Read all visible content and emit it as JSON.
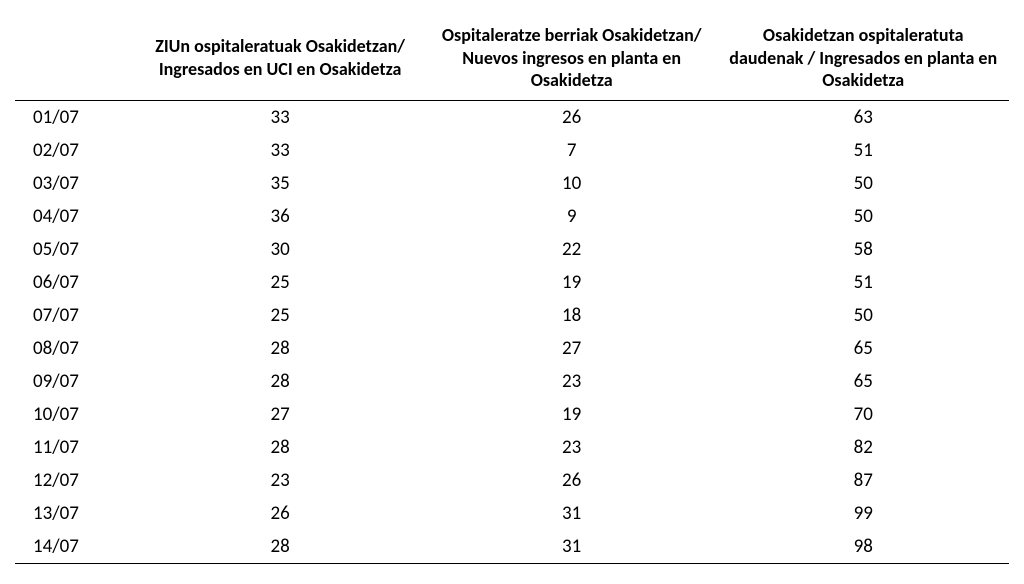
{
  "table": {
    "type": "table",
    "background_color": "#ffffff",
    "text_color": "#000000",
    "border_color": "#000000",
    "header_font_weight": "bold",
    "header_fontsize": 18,
    "cell_fontsize": 19,
    "columns": [
      {
        "key": "date",
        "label": "",
        "align": "left",
        "width_pct": 12
      },
      {
        "key": "uci",
        "label": "ZIUn ospitaleratuak Osakidetzan/ Ingresados en UCI en Osakidetza",
        "align": "center",
        "width_pct": 29.3
      },
      {
        "key": "new",
        "label": "Ospitaleratze berriak Osakidetzan/ Nuevos ingresos en planta en Osakidetza",
        "align": "center",
        "width_pct": 29.3
      },
      {
        "key": "total",
        "label": "Osakidetzan ospitaleratuta daudenak / Ingresados en planta en Osakidetza",
        "align": "center",
        "width_pct": 29.3
      }
    ],
    "rows": [
      {
        "date": "01/07",
        "uci": 33,
        "new": 26,
        "total": 63
      },
      {
        "date": "02/07",
        "uci": 33,
        "new": 7,
        "total": 51
      },
      {
        "date": "03/07",
        "uci": 35,
        "new": 10,
        "total": 50
      },
      {
        "date": "04/07",
        "uci": 36,
        "new": 9,
        "total": 50
      },
      {
        "date": "05/07",
        "uci": 30,
        "new": 22,
        "total": 58
      },
      {
        "date": "06/07",
        "uci": 25,
        "new": 19,
        "total": 51
      },
      {
        "date": "07/07",
        "uci": 25,
        "new": 18,
        "total": 50
      },
      {
        "date": "08/07",
        "uci": 28,
        "new": 27,
        "total": 65
      },
      {
        "date": "09/07",
        "uci": 28,
        "new": 23,
        "total": 65
      },
      {
        "date": "10/07",
        "uci": 27,
        "new": 19,
        "total": 70
      },
      {
        "date": "11/07",
        "uci": 28,
        "new": 23,
        "total": 82
      },
      {
        "date": "12/07",
        "uci": 23,
        "new": 26,
        "total": 87
      },
      {
        "date": "13/07",
        "uci": 26,
        "new": 31,
        "total": 99
      },
      {
        "date": "14/07",
        "uci": 28,
        "new": 31,
        "total": 98
      }
    ]
  }
}
